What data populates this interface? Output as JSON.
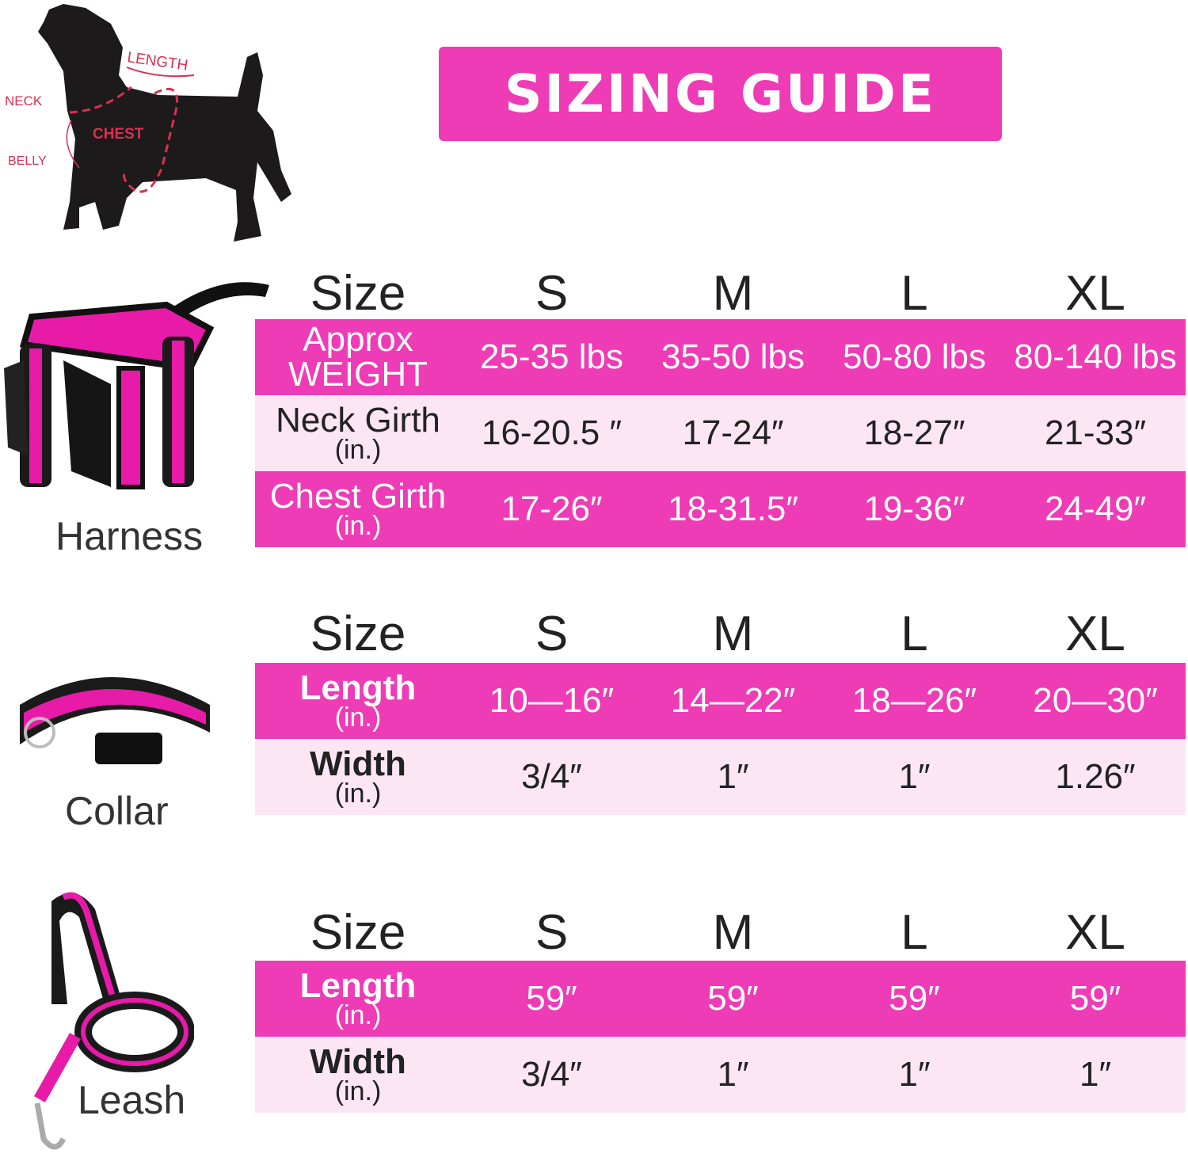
{
  "title": "SIZING GUIDE",
  "diagram_labels": [
    "LENGTH",
    "NECK",
    "CHEST",
    "BELLY"
  ],
  "colors": {
    "accent": "#ee3bb6",
    "light": "#fde6f4",
    "diagram_red": "#d93050"
  },
  "sizes": [
    "S",
    "M",
    "L",
    "XL"
  ],
  "size_label": "Size",
  "tables": [
    {
      "product": "Harness",
      "rows": [
        {
          "label": "Approx",
          "unit": "WEIGHT",
          "values": [
            "25-35 lbs",
            "35-50 lbs",
            "50-80 lbs",
            "80-140 lbs"
          ]
        },
        {
          "label": "Neck Girth",
          "unit": "(in.)",
          "values": [
            "16-20.5 ″",
            "17-24″",
            "18-27″",
            "21-33″"
          ]
        },
        {
          "label": "Chest Girth",
          "unit": "(in.)",
          "values": [
            "17-26″",
            "18-31.5″",
            "19-36″",
            "24-49″"
          ]
        }
      ]
    },
    {
      "product": "Collar",
      "rows": [
        {
          "label": "Length",
          "unit": "(in.)",
          "values": [
            "10—16″",
            "14—22″",
            "18—26″",
            "20—30″"
          ]
        },
        {
          "label": "Width",
          "unit": "(in.)",
          "values": [
            "3/4″",
            "1″",
            "1″",
            "1.26″"
          ]
        }
      ]
    },
    {
      "product": "Leash",
      "rows": [
        {
          "label": "Length",
          "unit": "(in.)",
          "values": [
            "59″",
            "59″",
            "59″",
            "59″"
          ]
        },
        {
          "label": "Width",
          "unit": "(in.)",
          "values": [
            "3/4″",
            "1″",
            "1″",
            "1″"
          ]
        }
      ]
    }
  ]
}
